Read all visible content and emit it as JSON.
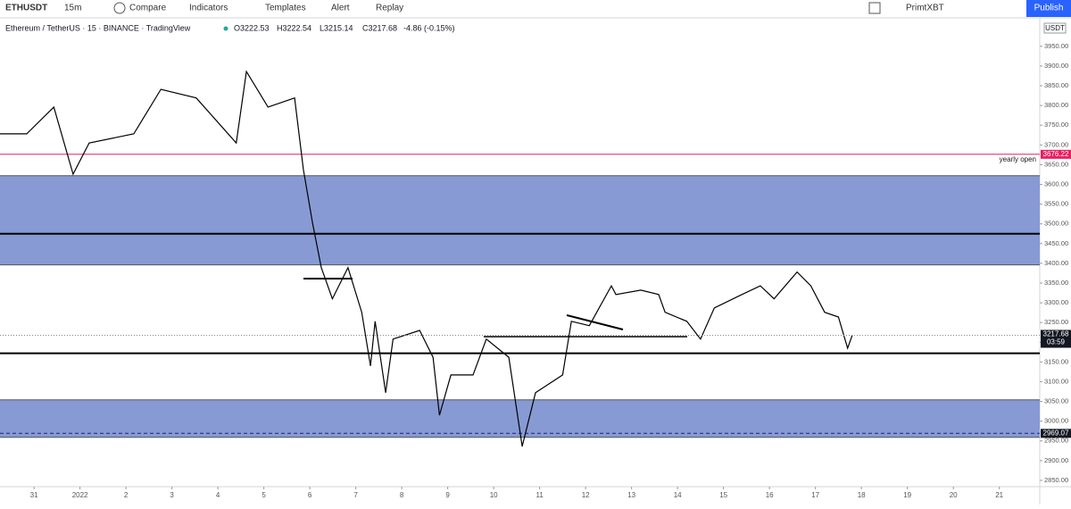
{
  "toolbar": {
    "symbol": "ETHUSDT",
    "interval": "15m",
    "compare": "Compare",
    "indicators": "Indicators",
    "templates": "Templates",
    "alert": "Alert",
    "replay": "Replay",
    "broker": "PrimtXBT",
    "publish": "Publish"
  },
  "legend": {
    "title": "Ethereum / TetherUS · 15 · BINANCE · TradingView",
    "open": "O3222.53",
    "high": "H3222.54",
    "low": "L3215.14",
    "close": "C3217.68",
    "change": "-4.86 (-0.15%)"
  },
  "chart_data": {
    "type": "line",
    "color": "#000000",
    "currency": "USDT",
    "x": [
      -0.74,
      -0.16,
      0.43,
      0.85,
      1.2,
      2.17,
      2.76,
      3.53,
      4.4,
      4.62,
      5.09,
      5.67,
      5.86,
      6.06,
      6.25,
      6.49,
      6.83,
      7.13,
      7.32,
      7.42,
      7.65,
      7.81,
      8.39,
      8.68,
      8.82,
      9.07,
      9.55,
      9.84,
      10.33,
      10.62,
      10.91,
      11.5,
      11.69,
      12.08,
      12.56,
      12.66,
      13.2,
      13.59,
      13.73,
      14.2,
      14.5,
      14.8,
      15.4,
      15.8,
      16.1,
      16.6,
      16.9,
      17.2,
      17.5,
      17.7,
      17.8
    ],
    "values": [
      3728,
      3728,
      3796,
      3626,
      3705,
      3728,
      3841,
      3819,
      3705,
      3886,
      3796,
      3819,
      3638,
      3502,
      3389,
      3310,
      3389,
      3276,
      3140,
      3253,
      3072,
      3208,
      3230,
      3162,
      3015,
      3117,
      3117,
      3208,
      3162,
      2936,
      3072,
      3117,
      3253,
      3242,
      3343,
      3321,
      3332,
      3321,
      3276,
      3253,
      3208,
      3287,
      3321,
      3343,
      3310,
      3378,
      3343,
      3276,
      3264,
      3185,
      3217.68
    ],
    "xlim": [
      -0.74,
      21.88
    ],
    "xticks": [
      {
        "value": 0,
        "label": "31"
      },
      {
        "value": 1,
        "label": "2022"
      },
      2,
      3,
      4,
      5,
      6,
      7,
      8,
      9,
      10,
      11,
      12,
      13,
      14,
      15,
      16,
      17,
      18,
      19,
      20,
      21
    ],
    "ylim": [
      2834,
      4022
    ],
    "yticks": [
      {
        "value": 2850,
        "label": "2850.00"
      },
      {
        "value": 2900,
        "label": "2900.00"
      },
      {
        "value": 2950,
        "label": "2950.00"
      },
      {
        "value": 3000,
        "label": "3000.00"
      },
      {
        "value": 3050,
        "label": "3050.00"
      },
      {
        "value": 3100,
        "label": "3100.00"
      },
      {
        "value": 3150,
        "label": "3150.00"
      },
      {
        "value": 3200,
        "label": "3200.00"
      },
      {
        "value": 3250,
        "label": "3250.00"
      },
      {
        "value": 3300,
        "label": "3300.00"
      },
      {
        "value": 3350,
        "label": "3350.00"
      },
      {
        "value": 3400,
        "label": "3400.00"
      },
      {
        "value": 3450,
        "label": "3450.00"
      },
      {
        "value": 3500,
        "label": "3500.00"
      },
      {
        "value": 3550,
        "label": "3550.00"
      },
      {
        "value": 3600,
        "label": "3600.00"
      },
      {
        "value": 3650,
        "label": "3650.00"
      },
      {
        "value": 3700,
        "label": "3700.00"
      },
      {
        "value": 3750,
        "label": "3750.00"
      },
      {
        "value": 3800,
        "label": "3800.00"
      },
      {
        "value": 3850,
        "label": "3850.00"
      },
      {
        "value": 3900,
        "label": "3900.00"
      },
      {
        "value": 3950,
        "label": "3950.00"
      }
    ],
    "zones": [
      [
        3396,
        3622
      ],
      [
        2959,
        3054
      ]
    ],
    "zone_color": "#7b8fcf",
    "levels": [
      3475,
      3172
    ],
    "yearly_open": {
      "value": 3676.22,
      "note": "yearly open",
      "color": "#e91e63"
    },
    "last_price": {
      "value": 3217.68,
      "countdown": "03:59"
    },
    "marked_low": 2969.07
  }
}
